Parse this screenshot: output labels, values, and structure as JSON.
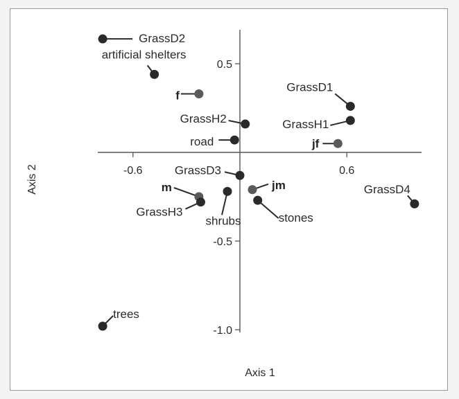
{
  "chart_data": {
    "type": "scatter",
    "xlabel": "Axis 1",
    "ylabel": "Axis 2",
    "xticks": [
      {
        "value": -0.6,
        "label": "-0.6"
      },
      {
        "value": 0.6,
        "label": "0.6"
      }
    ],
    "yticks": [
      {
        "value": 0.5,
        "label": "0.5"
      },
      {
        "value": -0.5,
        "label": "-0.5"
      },
      {
        "value": -1.0,
        "label": "-1.0"
      }
    ],
    "grid": false,
    "points": [
      {
        "label": "GrassD2",
        "x": -0.77,
        "y": 0.64,
        "color": "#2a2a2a",
        "bold": false
      },
      {
        "label": "artificial shelters",
        "x": -0.48,
        "y": 0.44,
        "color": "#2a2a2a",
        "bold": false
      },
      {
        "label": "f",
        "x": -0.23,
        "y": 0.33,
        "color": "#5a5a5a",
        "bold": true
      },
      {
        "label": "GrassD1",
        "x": 0.62,
        "y": 0.26,
        "color": "#2a2a2a",
        "bold": false
      },
      {
        "label": "GrassH1",
        "x": 0.62,
        "y": 0.18,
        "color": "#2a2a2a",
        "bold": false
      },
      {
        "label": "GrassH2",
        "x": 0.03,
        "y": 0.16,
        "color": "#2a2a2a",
        "bold": false
      },
      {
        "label": "road",
        "x": -0.03,
        "y": 0.07,
        "color": "#2a2a2a",
        "bold": false
      },
      {
        "label": "jf",
        "x": 0.55,
        "y": 0.05,
        "color": "#5a5a5a",
        "bold": true
      },
      {
        "label": "GrassD3",
        "x": 0.0,
        "y": -0.13,
        "color": "#2a2a2a",
        "bold": false
      },
      {
        "label": "jm",
        "x": 0.07,
        "y": -0.21,
        "color": "#5a5a5a",
        "bold": true
      },
      {
        "label": "m",
        "x": -0.23,
        "y": -0.25,
        "color": "#5a5a5a",
        "bold": true
      },
      {
        "label": "GrassH3",
        "x": -0.22,
        "y": -0.28,
        "color": "#2a2a2a",
        "bold": false
      },
      {
        "label": "shrubs",
        "x": -0.07,
        "y": -0.22,
        "color": "#2a2a2a",
        "bold": false
      },
      {
        "label": "stones",
        "x": 0.1,
        "y": -0.27,
        "color": "#2a2a2a",
        "bold": false
      },
      {
        "label": "GrassD4",
        "x": 0.98,
        "y": -0.29,
        "color": "#2a2a2a",
        "bold": false
      },
      {
        "label": "trees",
        "x": -0.77,
        "y": -0.98,
        "color": "#2a2a2a",
        "bold": false
      }
    ]
  }
}
